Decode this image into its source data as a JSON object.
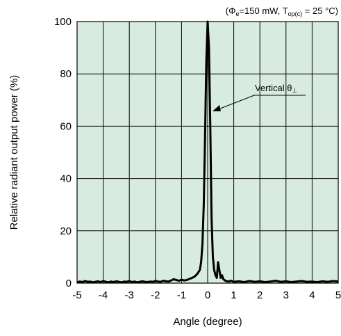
{
  "chart_data": {
    "type": "line",
    "condition": {
      "open": "(",
      "phi": "Φ",
      "phi_sub": "e",
      "phi_val": "=150 mW, T",
      "t_sub": "op(c)",
      "t_val": " = 25 °C)"
    },
    "xlabel": "Angle (degree)",
    "ylabel": "Relative radiant output power  (%)",
    "xlim": [
      -5,
      5
    ],
    "ylim": [
      0,
      100
    ],
    "xticks": [
      "-5",
      "-4",
      "-3",
      "-2",
      "-1",
      "0",
      "1",
      "2",
      "3",
      "4",
      "5"
    ],
    "yticks": [
      "0",
      "20",
      "40",
      "60",
      "80",
      "100"
    ],
    "grid": true,
    "annotation": {
      "text": "Vertical θ",
      "symbol": "⊥",
      "x": 0.25,
      "y": 68
    },
    "colors": {
      "plot_bg": "#d7ebe0",
      "grid": "#000000",
      "line": "#000000"
    },
    "series": [
      {
        "x": [
          -5,
          -4.9,
          -4.8,
          -4.7,
          -4.6,
          -4.5,
          -4.4,
          -4.3,
          -4.2,
          -4.1,
          -4,
          -3.9,
          -3.8,
          -3.7,
          -3.6,
          -3.5,
          -3.4,
          -3.3,
          -3.2,
          -3.1,
          -3,
          -2.9,
          -2.8,
          -2.7,
          -2.6,
          -2.5,
          -2.4,
          -2.3,
          -2.2,
          -2.1,
          -2,
          -1.9,
          -1.8,
          -1.7,
          -1.6,
          -1.5,
          -1.4,
          -1.3,
          -1.2,
          -1.1,
          -1.0,
          -0.9,
          -0.8,
          -0.7,
          -0.6,
          -0.5,
          -0.4,
          -0.3,
          -0.25,
          -0.2,
          -0.15,
          -0.1,
          -0.05,
          0,
          0.05,
          0.1,
          0.15,
          0.2,
          0.25,
          0.3,
          0.35,
          0.4,
          0.45,
          0.5,
          0.55,
          0.6,
          0.7,
          0.8,
          0.9,
          1.0,
          1.2,
          1.4,
          1.6,
          1.8,
          2.0,
          2.2,
          2.4,
          2.6,
          2.8,
          3.0,
          3.2,
          3.4,
          3.6,
          3.8,
          4.0,
          4.2,
          4.4,
          4.6,
          4.8,
          5
        ],
        "y": [
          0.3,
          0.6,
          0.4,
          0.8,
          0.5,
          0.6,
          0.3,
          0.5,
          0.7,
          0.4,
          0.8,
          0.5,
          0.3,
          0.6,
          0.4,
          0.7,
          0.5,
          0.3,
          0.6,
          0.5,
          0.8,
          0.4,
          0.6,
          0.3,
          0.5,
          0.7,
          0.5,
          0.4,
          0.6,
          0.5,
          0.8,
          0.6,
          0.5,
          0.9,
          0.7,
          0.6,
          1.0,
          1.5,
          1.2,
          0.9,
          1.3,
          1.0,
          1.2,
          1.6,
          2.0,
          2.5,
          3.5,
          5,
          8,
          15,
          30,
          55,
          85,
          100,
          90,
          60,
          25,
          10,
          5,
          3,
          2,
          8,
          5,
          2,
          3,
          1.5,
          0.8,
          0.6,
          0.9,
          0.5,
          0.7,
          0.4,
          0.8,
          0.5,
          0.7,
          0.4,
          0.6,
          0.9,
          0.5,
          0.7,
          0.4,
          0.6,
          0.8,
          0.5,
          0.6,
          0.4,
          0.7,
          0.5,
          0.8,
          0.6
        ]
      }
    ]
  }
}
